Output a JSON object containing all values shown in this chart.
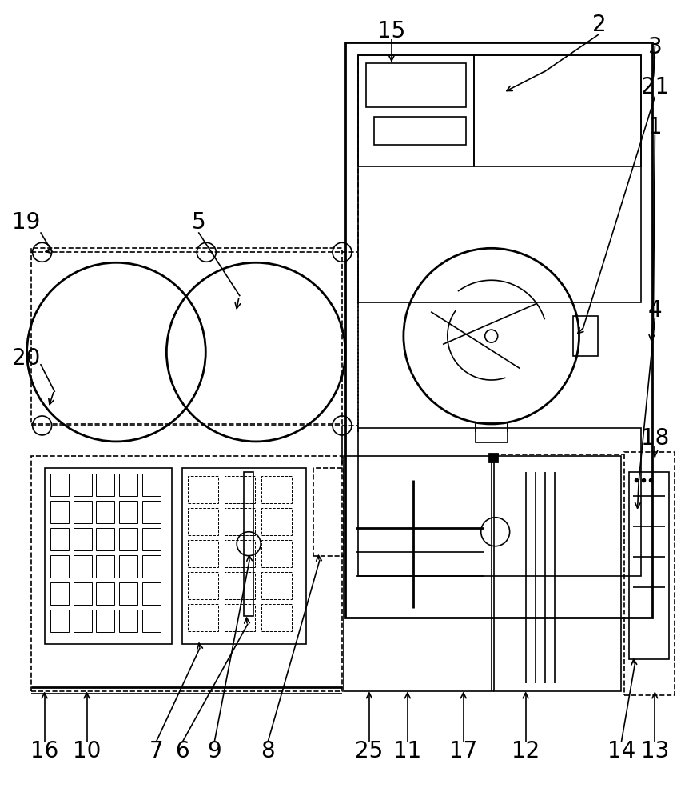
{
  "bg_color": "#ffffff",
  "line_color": "#000000",
  "lw": 1.2,
  "lw2": 2.0,
  "label_fontsize": 20,
  "figsize": [
    8.53,
    10.0
  ],
  "dpi": 100
}
